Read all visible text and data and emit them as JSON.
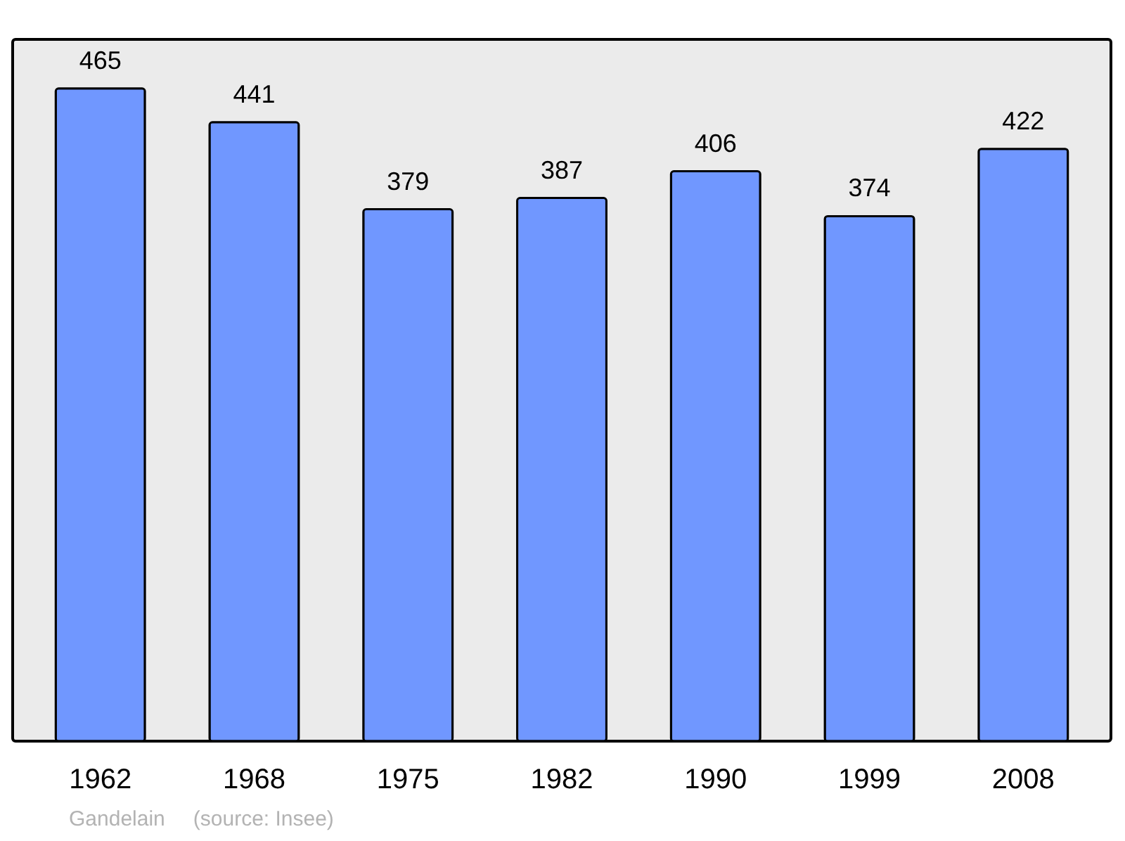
{
  "chart_data": {
    "type": "bar",
    "categories": [
      "1962",
      "1968",
      "1975",
      "1982",
      "1990",
      "1999",
      "2008"
    ],
    "values": [
      465,
      441,
      379,
      387,
      406,
      374,
      422
    ],
    "color": "#7097ff",
    "data_labels": true,
    "tick_labels": "x",
    "annotations": [
      "Gandelain",
      "(source: Insee)"
    ]
  }
}
